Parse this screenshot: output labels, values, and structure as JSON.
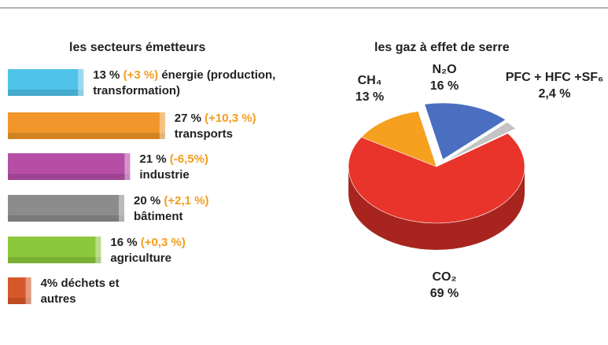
{
  "chart_data": [
    {
      "type": "bar",
      "orientation": "horizontal",
      "title": "les secteurs émetteurs",
      "categories": [
        "énergie (production, transformation)",
        "transports",
        "industrie",
        "bâtiment",
        "agriculture",
        "déchets et autres"
      ],
      "values": [
        13,
        27,
        21,
        20,
        16,
        4
      ],
      "value_labels": [
        "13 %",
        "27 %",
        "21 %",
        "20 %",
        "16 %",
        "4%"
      ],
      "changes": [
        {
          "value": 3,
          "label": "(+3 %)"
        },
        {
          "value": 10.3,
          "label": "(+10,3 %)"
        },
        {
          "value": -6.5,
          "label": "(-6,5%)"
        },
        {
          "value": 2.1,
          "label": "(+2,1 %)"
        },
        {
          "value": 0.3,
          "label": "(+0,3 %)"
        },
        null
      ],
      "colors": [
        "#4fc3ea",
        "#f0962a",
        "#b64ea6",
        "#8c8c8c",
        "#8cc83c",
        "#d6582a"
      ]
    },
    {
      "type": "pie",
      "title": "les gaz à effet de serre",
      "categories": [
        "N₂O",
        "PFC + HFC +SF₆",
        "CO₂",
        "CH₄"
      ],
      "values": [
        16,
        2.4,
        69,
        13
      ],
      "value_labels": [
        "16 %",
        "2,4 %",
        "69 %",
        "13 %"
      ],
      "colors": [
        "#4a6fc0",
        "#c4c4c4",
        "#e8342a",
        "#f5a01e"
      ]
    }
  ]
}
